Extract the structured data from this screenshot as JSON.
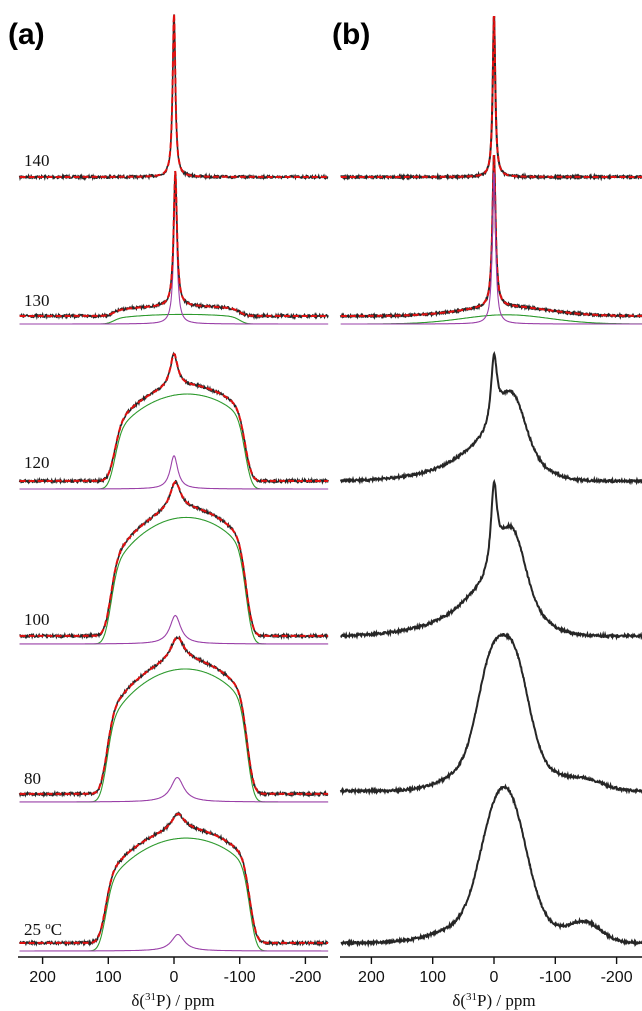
{
  "chart_data": {
    "type": "line",
    "title": "",
    "x_axis": {
      "label": "δ(³¹P) / ppm",
      "label_parts": [
        "δ(",
        "31",
        "P) / ppm"
      ],
      "xlim": [
        250,
        -250
      ],
      "reversed": true,
      "ticks": [
        "200",
        "100",
        "0",
        "-100",
        "-200"
      ],
      "tick_values": [
        200,
        100,
        0,
        -100,
        -200
      ]
    },
    "colors": {
      "experimental": "#262626",
      "fit_total": "#e01010",
      "broad_component": "#2e9a2e",
      "narrow_component": "#9a40a8",
      "axis": "#111111"
    },
    "panels": [
      {
        "label": "(a)",
        "content": "experimental spectra with total fit, broad powder-pattern component and narrow isotropic component",
        "spectra": [
          {
            "temp_label": "140",
            "narrow_peak_ppm": 0,
            "narrow_width_ppm": 2.5,
            "broad_share": 0,
            "edge_ppm": [
              0,
              0
            ]
          },
          {
            "temp_label": "130",
            "narrow_peak_ppm": -2,
            "narrow_width_ppm": 3,
            "broad_share": 0.06,
            "edge_ppm": [
              92,
              -100
            ]
          },
          {
            "temp_label": "120",
            "narrow_peak_ppm": 0,
            "narrow_width_ppm": 7,
            "broad_share": 0.72,
            "edge_ppm": [
              90,
              -108
            ]
          },
          {
            "temp_label": "100",
            "narrow_peak_ppm": -2,
            "narrow_width_ppm": 10,
            "broad_share": 0.8,
            "edge_ppm": [
              96,
              -110
            ]
          },
          {
            "temp_label": "80",
            "narrow_peak_ppm": -5,
            "narrow_width_ppm": 12,
            "broad_share": 0.83,
            "edge_ppm": [
              102,
              -112
            ]
          },
          {
            "temp_label": "25 °C",
            "temp_label_parts": [
              "25 ",
              "o",
              "C"
            ],
            "narrow_peak_ppm": -6,
            "narrow_width_ppm": 12,
            "broad_share": 0.86,
            "edge_ppm": [
              104,
              -116
            ]
          }
        ]
      },
      {
        "label": "(b)",
        "content": "experimental spectra; top two with fits",
        "spectra": [
          {
            "temp_label": "140",
            "peak_ppm": 0,
            "shape": "narrow"
          },
          {
            "temp_label": "130",
            "peak_ppm": 0,
            "shape": "narrow_plus_broad"
          },
          {
            "temp_label": "120",
            "peak_ppm": 0,
            "shape": "peak_with_shoulder"
          },
          {
            "temp_label": "100",
            "peak_ppm": 0,
            "shape": "peak_with_shoulder"
          },
          {
            "temp_label": "80",
            "peak_ppm": -15,
            "shape": "broad_doublet"
          },
          {
            "temp_label": "25 °C",
            "peak_ppm": -25,
            "shape": "broad_asymmetric"
          }
        ]
      }
    ]
  }
}
